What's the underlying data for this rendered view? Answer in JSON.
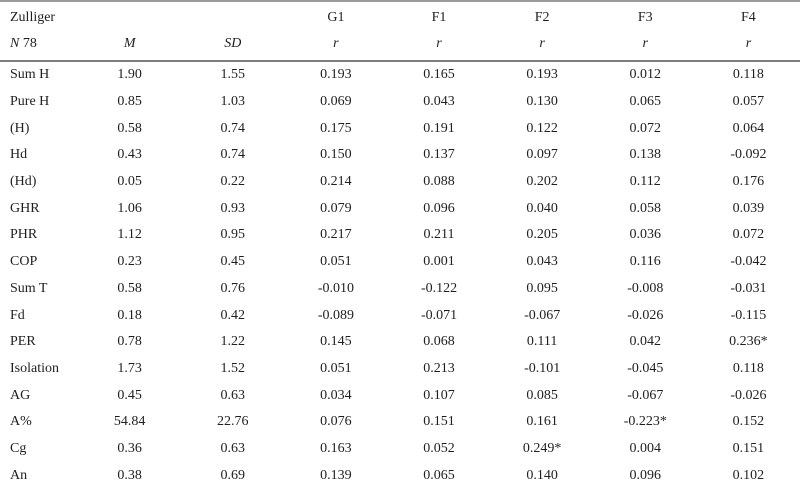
{
  "table": {
    "header": {
      "corner_line1": "Zulliger",
      "corner_line2_italic": "N",
      "corner_line2_rest": "78",
      "groups": [
        "",
        "",
        "G1",
        "F1",
        "F2",
        "F3",
        "F4"
      ],
      "subs": [
        "M",
        "SD",
        "r",
        "r",
        "r",
        "r",
        "r"
      ]
    },
    "rows": [
      {
        "label": "Sum H",
        "values": [
          "1.90",
          "1.55",
          "0.193",
          "0.165",
          "0.193",
          "0.012",
          "0.118"
        ]
      },
      {
        "label": "Pure H",
        "values": [
          "0.85",
          "1.03",
          "0.069",
          "0.043",
          "0.130",
          "0.065",
          "0.057"
        ]
      },
      {
        "label": "(H)",
        "values": [
          "0.58",
          "0.74",
          "0.175",
          "0.191",
          "0.122",
          "0.072",
          "0.064"
        ]
      },
      {
        "label": "Hd",
        "values": [
          "0.43",
          "0.74",
          "0.150",
          "0.137",
          "0.097",
          "0.138",
          "-0.092"
        ]
      },
      {
        "label": "(Hd)",
        "values": [
          "0.05",
          "0.22",
          "0.214",
          "0.088",
          "0.202",
          "0.112",
          "0.176"
        ]
      },
      {
        "label": "GHR",
        "values": [
          "1.06",
          "0.93",
          "0.079",
          "0.096",
          "0.040",
          "0.058",
          "0.039"
        ]
      },
      {
        "label": "PHR",
        "values": [
          "1.12",
          "0.95",
          "0.217",
          "0.211",
          "0.205",
          "0.036",
          "0.072"
        ]
      },
      {
        "label": "COP",
        "values": [
          "0.23",
          "0.45",
          "0.051",
          "0.001",
          "0.043",
          "0.116",
          "-0.042"
        ]
      },
      {
        "label": "Sum T",
        "values": [
          "0.58",
          "0.76",
          "-0.010",
          "-0.122",
          "0.095",
          "-0.008",
          "-0.031"
        ]
      },
      {
        "label": "Fd",
        "values": [
          "0.18",
          "0.42",
          "-0.089",
          "-0.071",
          "-0.067",
          "-0.026",
          "-0.115"
        ]
      },
      {
        "label": "PER",
        "values": [
          "0.78",
          "1.22",
          "0.145",
          "0.068",
          "0.111",
          "0.042",
          "0.236*"
        ]
      },
      {
        "label": "Isolation",
        "values": [
          "1.73",
          "1.52",
          "0.051",
          "0.213",
          "-0.101",
          "-0.045",
          "0.118"
        ]
      },
      {
        "label": "AG",
        "values": [
          "0.45",
          "0.63",
          "0.034",
          "0.107",
          "0.085",
          "-0.067",
          "-0.026"
        ]
      },
      {
        "label": "A%",
        "values": [
          "54.84",
          "22.76",
          "0.076",
          "0.151",
          "0.161",
          "-0.223*",
          "0.152"
        ]
      },
      {
        "label": "Cg",
        "values": [
          "0.36",
          "0.63",
          "0.163",
          "0.052",
          "0.249*",
          "0.004",
          "0.151"
        ]
      },
      {
        "label": "An",
        "values": [
          "0.38",
          "0.69",
          "0.139",
          "0.065",
          "0.140",
          "0.096",
          "0.102"
        ]
      }
    ]
  },
  "colors": {
    "rule_outer": "#9a9a9a",
    "rule_header": "#7d7d7d",
    "text": "#1f1f1f",
    "background": "#ffffff"
  }
}
